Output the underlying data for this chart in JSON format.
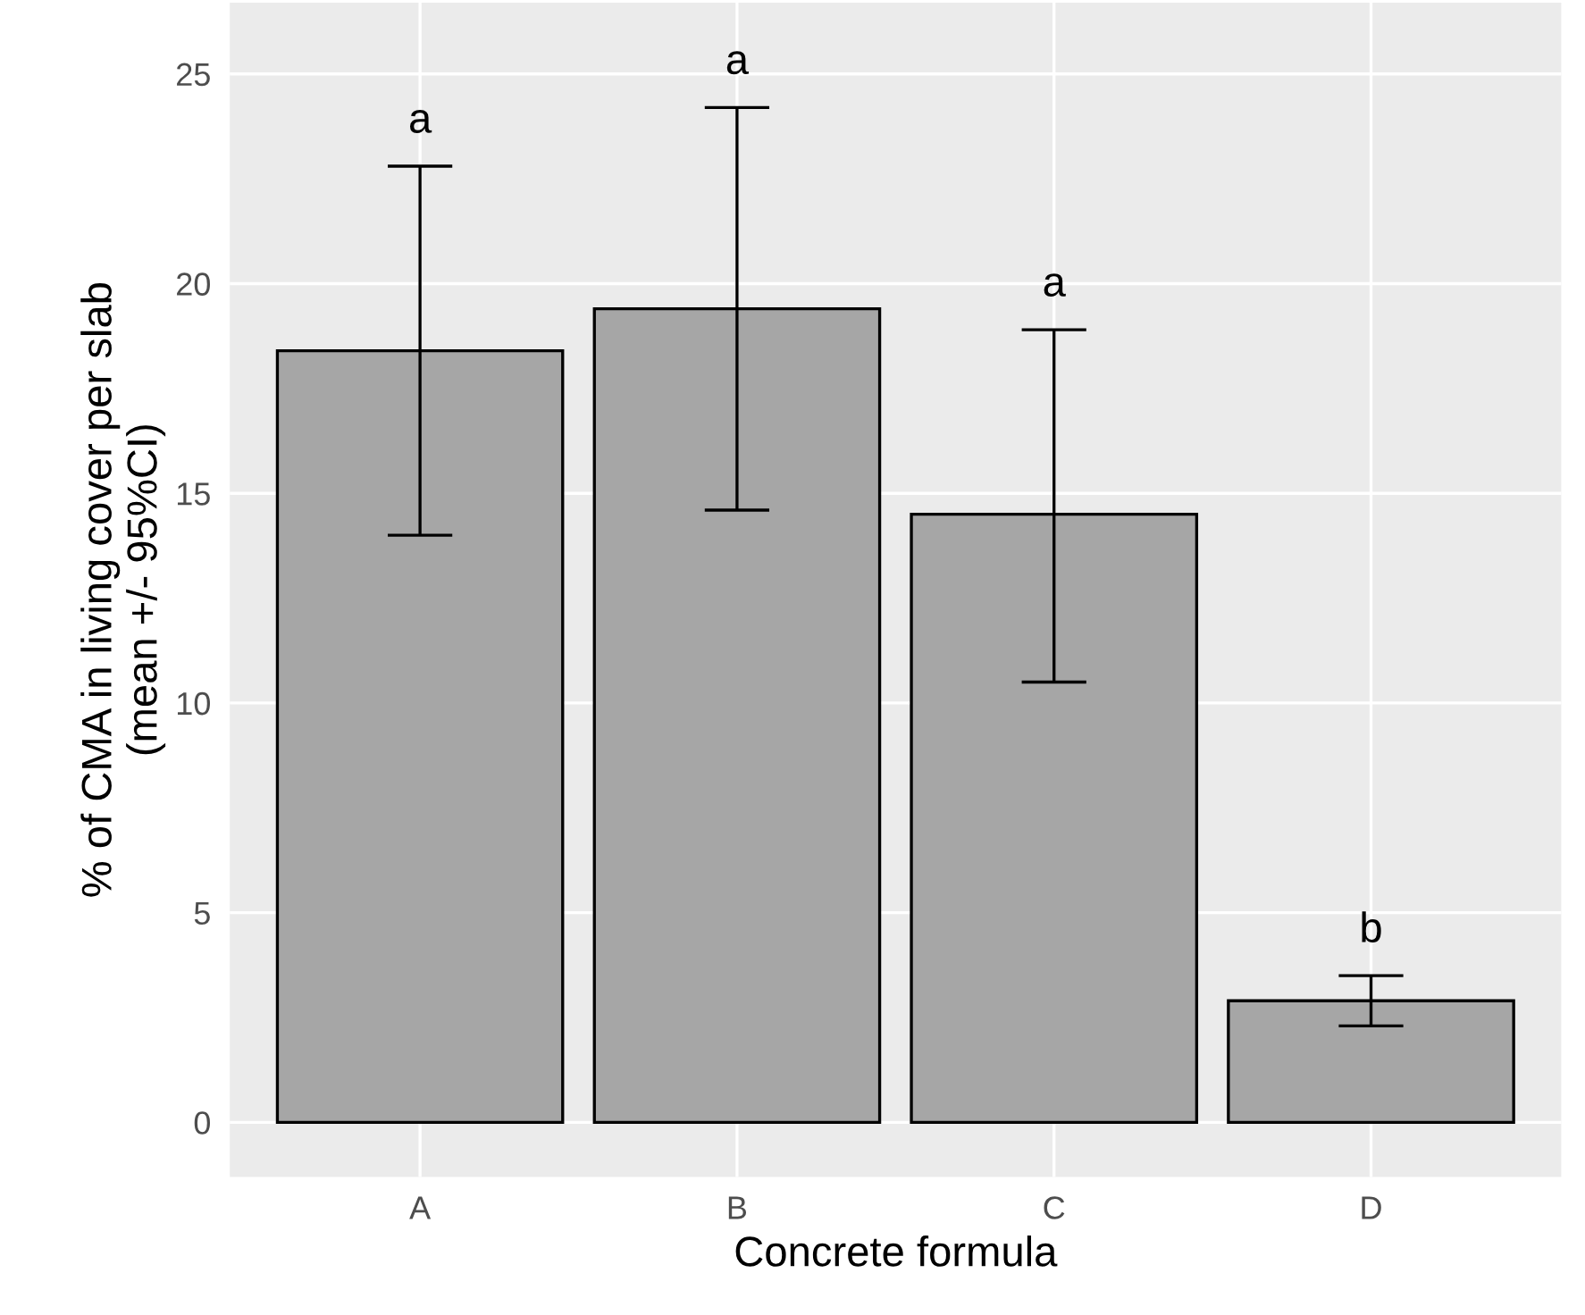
{
  "chart_data": {
    "type": "bar",
    "xlabel": "Concrete formula",
    "ylabel": "% of CMA in living cover per slab\n(mean +/- 95%CI)",
    "categories": [
      "A",
      "B",
      "C",
      "D"
    ],
    "values": [
      18.4,
      19.4,
      14.5,
      2.9
    ],
    "color": "#a6a6a6",
    "errors": [
      [
        14.0,
        22.8
      ],
      [
        14.6,
        24.2
      ],
      [
        10.5,
        18.9
      ],
      [
        2.3,
        3.5
      ]
    ],
    "ylim": [
      -1.3,
      26.7
    ],
    "yticks": [
      0,
      5,
      10,
      15,
      20,
      25
    ],
    "grid": true,
    "annotations": [
      "a",
      "a",
      "a",
      "b"
    ]
  }
}
